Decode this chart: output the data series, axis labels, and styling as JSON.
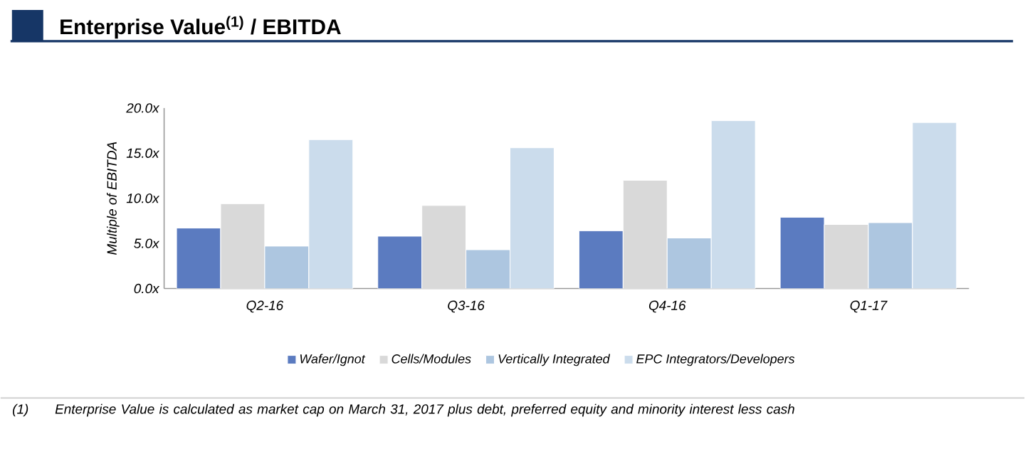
{
  "chart_data": {
    "type": "bar",
    "title": "Enterprise Value$^{(1)}$ / EBITDA",
    "ylabel": "Multiple of EBITDA",
    "categories": [
      "Q2-16",
      "Q3-16",
      "Q4-16",
      "Q1-17"
    ],
    "series": [
      {
        "name": "Wafer/Ignot",
        "color": "#5b7bc0",
        "values": [
          6.7,
          5.8,
          6.4,
          7.9
        ]
      },
      {
        "name": "Cells/Modules",
        "color": "#d9d9d9",
        "values": [
          9.4,
          9.2,
          12.0,
          7.1
        ]
      },
      {
        "name": "Vertically Integrated",
        "color": "#adc6e0",
        "values": [
          4.7,
          4.3,
          5.6,
          7.3
        ]
      },
      {
        "name": "EPC Integrators/Developers",
        "color": "#cbdcec",
        "values": [
          16.5,
          15.6,
          18.6,
          18.4
        ]
      }
    ],
    "ylim": [
      0,
      20
    ],
    "yticks": [
      {
        "value": 0,
        "label": "0.0x"
      },
      {
        "value": 5,
        "label": "5.0x"
      },
      {
        "value": 10,
        "label": "10.0x"
      },
      {
        "value": 15,
        "label": "15.0x"
      },
      {
        "value": 20,
        "label": "20.0x"
      }
    ],
    "legend": "bottom",
    "annotations": [
      "(1)",
      "Enterprise Value is calculated as market cap on March 31, 2017 plus debt, preferred equity and minority interest less cash"
    ]
  }
}
